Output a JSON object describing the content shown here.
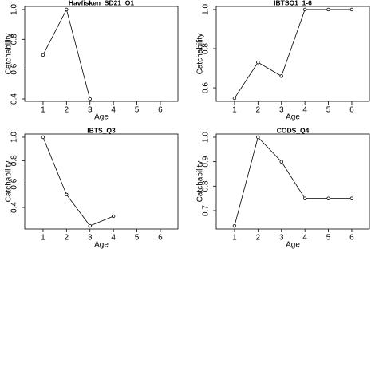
{
  "chart_data": [
    {
      "type": "line",
      "title": "Havfisken_SD21_Q1",
      "xlabel": "Age",
      "ylabel": "Catchability",
      "color": "#000000",
      "x": [
        1,
        2,
        3
      ],
      "values": [
        0.695,
        1,
        0.4
      ],
      "xlim": [
        0.22,
        6.75
      ],
      "ylim": [
        0.384,
        1.021
      ],
      "xticks": [
        1,
        2,
        3,
        4,
        5,
        6
      ],
      "yticks": [
        0.4,
        0.6,
        0.8,
        {
          "value": 1,
          "label": "1.0"
        }
      ]
    },
    {
      "type": "line",
      "title": "IBTSQ1_1-6",
      "xlabel": "Age",
      "ylabel": "Catchability",
      "color": "#000000",
      "x": [
        1,
        2,
        3,
        4,
        5,
        6
      ],
      "values": [
        0.547,
        0.73,
        0.66,
        1,
        1,
        1
      ],
      "xlim": [
        0.22,
        6.75
      ],
      "ylim": [
        0.531,
        1.016
      ],
      "xticks": [
        1,
        2,
        3,
        4,
        5,
        6
      ],
      "yticks": [
        0.6,
        0.8,
        {
          "value": 1,
          "label": "1.0"
        }
      ]
    },
    {
      "type": "line",
      "title": "IBTS_Q3",
      "xlabel": "Age",
      "ylabel": "Catchability",
      "color": "#000000",
      "x": [
        1,
        2,
        3,
        4
      ],
      "values": [
        1,
        0.51,
        0.243,
        0.325
      ],
      "xlim": [
        0.22,
        6.75
      ],
      "ylim": [
        0.216,
        1.027
      ],
      "xticks": [
        1,
        2,
        3,
        4,
        5,
        6
      ],
      "yticks": [
        0.4,
        0.6,
        0.8,
        {
          "value": 1,
          "label": "1.0"
        }
      ]
    },
    {
      "type": "line",
      "title": "CODS_Q4",
      "xlabel": "Age",
      "ylabel": "Catchability",
      "color": "#000000",
      "x": [
        1,
        2,
        3,
        4,
        5,
        6
      ],
      "values": [
        0.638,
        1,
        0.9,
        0.75,
        0.75,
        0.75
      ],
      "xlim": [
        0.22,
        6.75
      ],
      "ylim": [
        0.625,
        1.013
      ],
      "xticks": [
        1,
        2,
        3,
        4,
        5,
        6
      ],
      "yticks": [
        0.7,
        0.8,
        0.9,
        {
          "value": 1,
          "label": "1.0"
        }
      ]
    }
  ]
}
